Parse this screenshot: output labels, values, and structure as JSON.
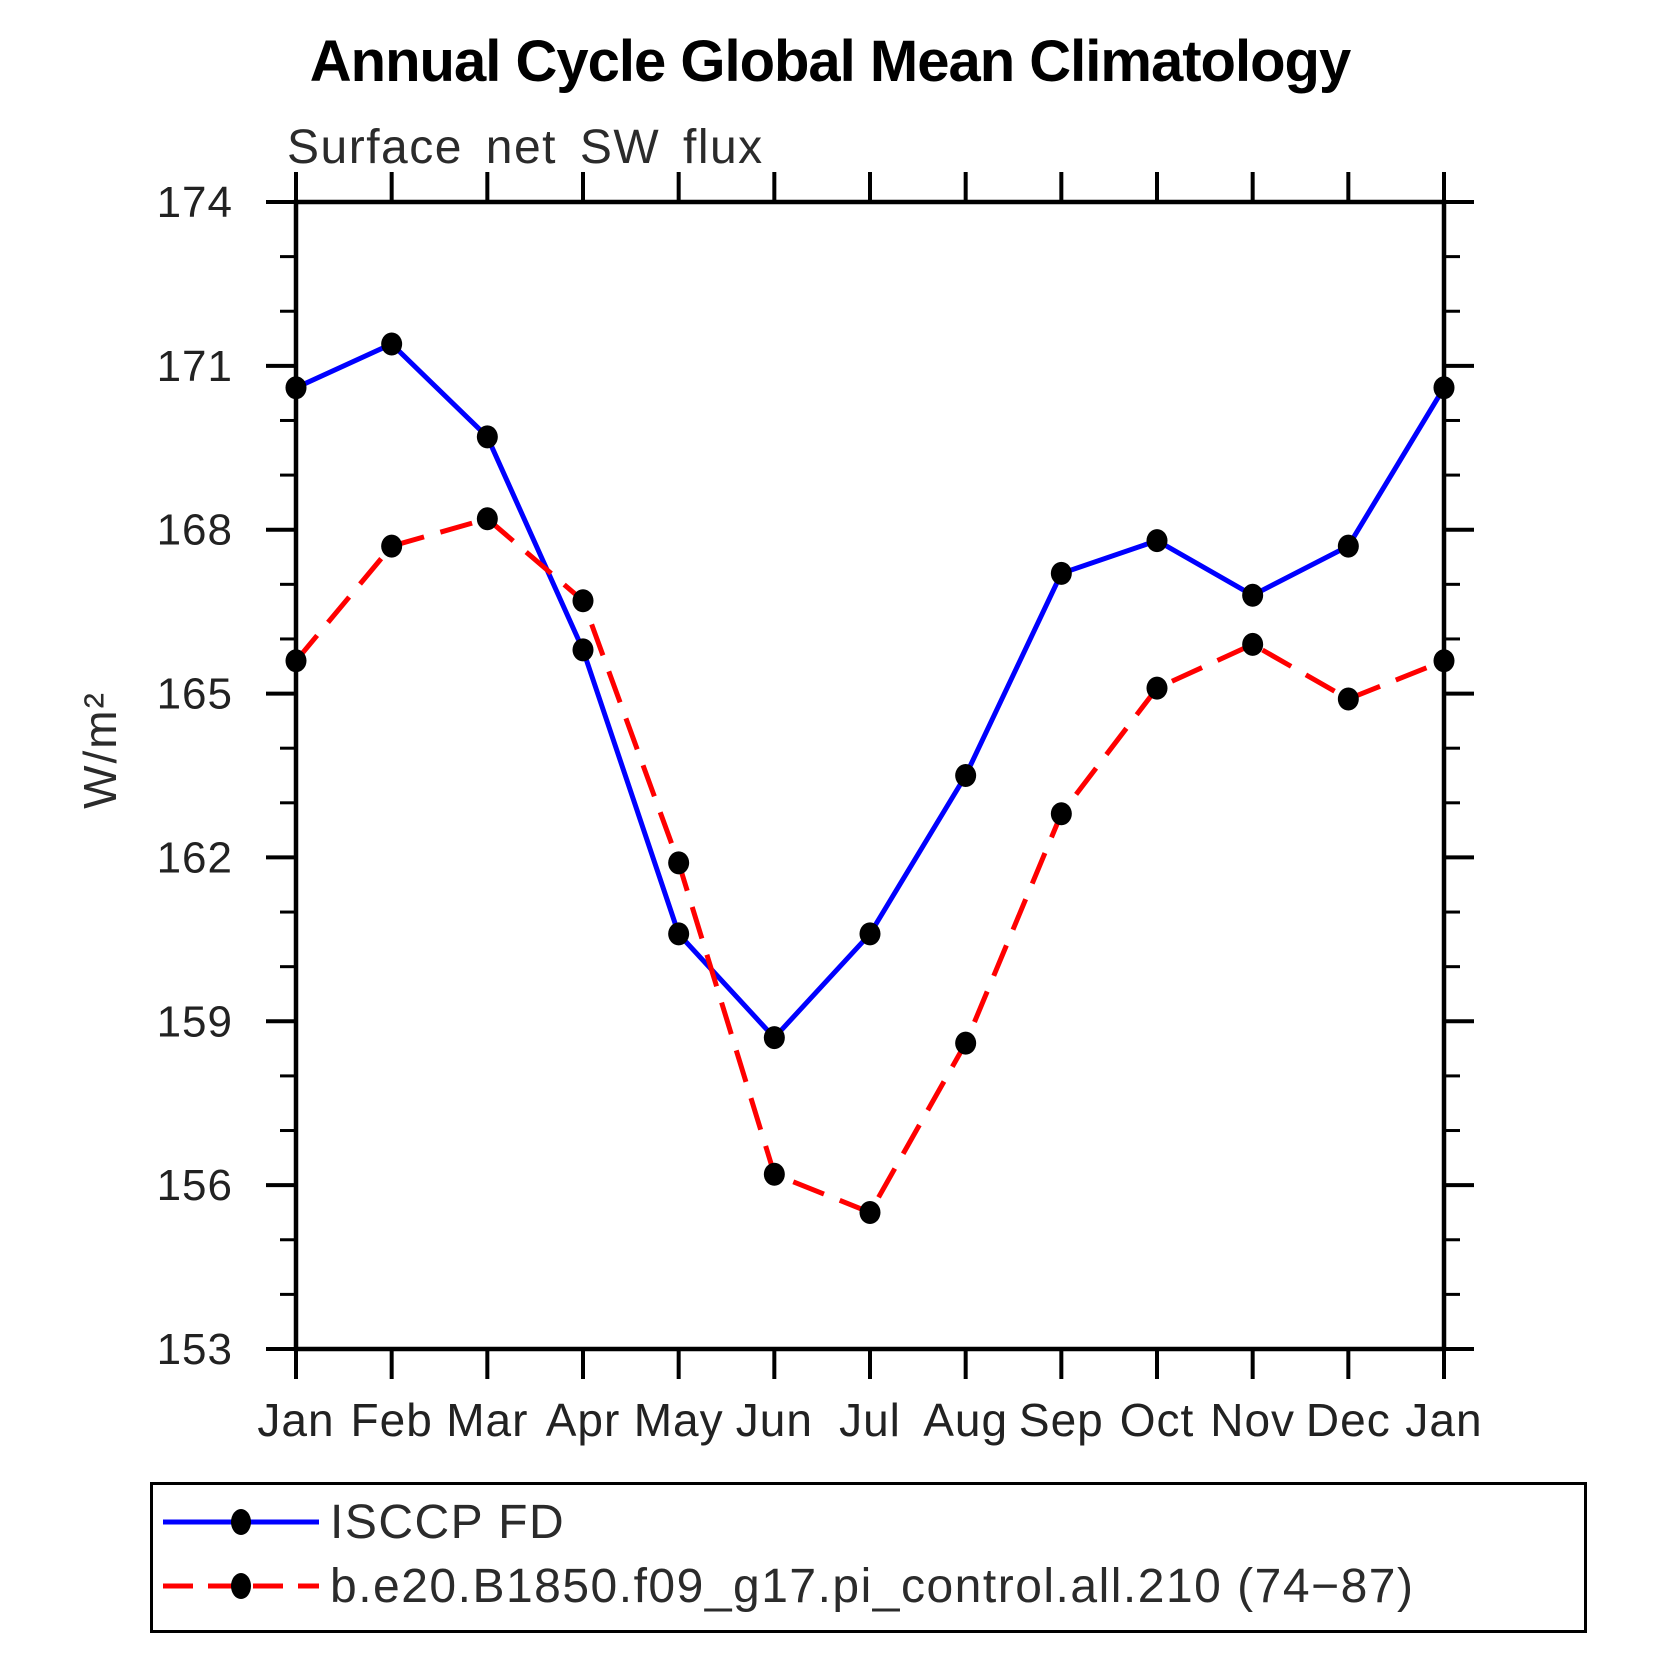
{
  "chart_data": {
    "type": "line",
    "title": "Annual Cycle Global Mean Climatology",
    "subtitle": "Surface net SW flux",
    "ylabel": "W/m²",
    "xlabel": "",
    "x_ticklabels": [
      "Jan",
      "Feb",
      "Mar",
      "Apr",
      "May",
      "Jun",
      "Jul",
      "Aug",
      "Sep",
      "Oct",
      "Nov",
      "Dec",
      "Jan"
    ],
    "y_ticks": [
      153,
      156,
      159,
      162,
      165,
      168,
      171,
      174
    ],
    "ylim": [
      153,
      174
    ],
    "grid": false,
    "legend_position": "bottom",
    "axis_color": "#000000",
    "marker_color": "#000000",
    "series": [
      {
        "name": "ISCCP FD",
        "color": "#0000ff",
        "style": "solid",
        "marker": "filled-black-dot",
        "values": [
          170.6,
          171.4,
          169.7,
          165.8,
          160.6,
          158.7,
          160.6,
          163.5,
          167.2,
          167.8,
          166.8,
          167.7,
          170.6
        ]
      },
      {
        "name": "b.e20.B1850.f09_g17.pi_control.all.210 (74−87)",
        "color": "#ff0000",
        "style": "dashed",
        "marker": "filled-black-dot",
        "values": [
          165.6,
          167.7,
          168.2,
          166.7,
          161.9,
          156.2,
          155.5,
          158.6,
          162.8,
          165.1,
          165.9,
          164.9,
          165.6
        ]
      }
    ]
  }
}
